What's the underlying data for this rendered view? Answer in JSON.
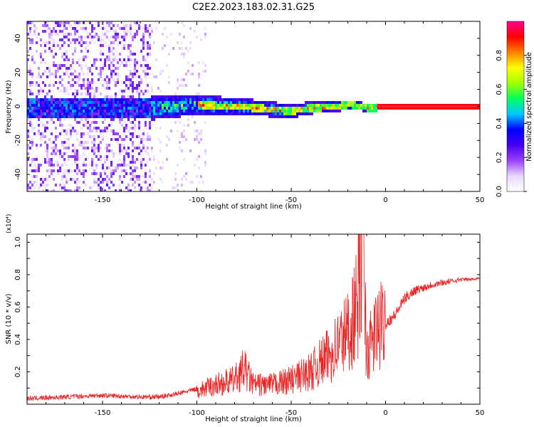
{
  "title": "C2E2.2023.183.02.31.G25",
  "colors": {
    "snr_line": "#ee2222",
    "frequency_track": "#ff2a2a",
    "colormap": [
      "#ffffff",
      "#e8d8ff",
      "#9b40ff",
      "#4400ee",
      "#0000ff",
      "#00c8ff",
      "#00ff60",
      "#a0ff00",
      "#ffff00",
      "#ff8000",
      "#ff0000",
      "#ff0090"
    ]
  },
  "chart_data": [
    {
      "type": "heatmap",
      "xlabel": "Height of straight line (km)",
      "ylabel": "Frequency (Hz)",
      "xlim": [
        -190,
        50
      ],
      "ylim": [
        -50,
        50
      ],
      "x_ticks": [
        "-150",
        "-100",
        "-50",
        "0",
        "50"
      ],
      "y_ticks": [
        "-40",
        "-20",
        "0",
        "20",
        "40"
      ],
      "colorbar": {
        "label": "Normalized spectral amplitude",
        "range": [
          0,
          1
        ],
        "ticks": [
          "0.0",
          "0.2",
          "0.4",
          "0.6",
          "0.8"
        ]
      },
      "grid": false,
      "frequency_track": {
        "x": [
          -180,
          -160,
          -140,
          -120,
          -110,
          -100,
          -90,
          -80,
          -70,
          -60,
          -55,
          -50,
          -45,
          -40,
          -35,
          -30,
          -25,
          -20,
          -15,
          -10,
          -5,
          0,
          10,
          50
        ],
        "y": [
          0,
          0,
          0,
          0,
          1,
          2,
          1,
          1,
          0,
          -1,
          -1.5,
          -2,
          -1,
          0,
          0,
          1,
          1,
          2,
          1,
          0,
          0,
          0,
          0,
          0
        ]
      }
    },
    {
      "type": "line",
      "xlabel": "Height of straight line (km)",
      "ylabel": "SNR (10 * v/v)",
      "y_scale_label": "(x10⁴)",
      "xlim": [
        -190,
        50
      ],
      "ylim": [
        0,
        1.05
      ],
      "x_ticks": [
        "-150",
        "-100",
        "-50",
        "0",
        "50"
      ],
      "y_ticks": [
        "0.2",
        "0.4",
        "0.6",
        "0.8",
        "1.0"
      ],
      "grid": false,
      "series": [
        {
          "x": [
            -190,
            -170,
            -150,
            -130,
            -120,
            -110,
            -100,
            -90,
            -80,
            -75,
            -70,
            -60,
            -50,
            -40,
            -30,
            -20,
            -15,
            -12,
            -10,
            -5,
            0,
            5,
            10,
            15,
            20,
            25,
            30,
            35,
            40,
            45,
            50
          ],
          "y": [
            0.02,
            0.03,
            0.04,
            0.03,
            0.03,
            0.05,
            0.08,
            0.12,
            0.15,
            0.22,
            0.12,
            0.12,
            0.15,
            0.2,
            0.3,
            0.45,
            0.6,
            1.05,
            0.3,
            0.45,
            0.5,
            0.55,
            0.65,
            0.7,
            0.72,
            0.74,
            0.75,
            0.76,
            0.77,
            0.77,
            0.78
          ]
        }
      ]
    }
  ]
}
